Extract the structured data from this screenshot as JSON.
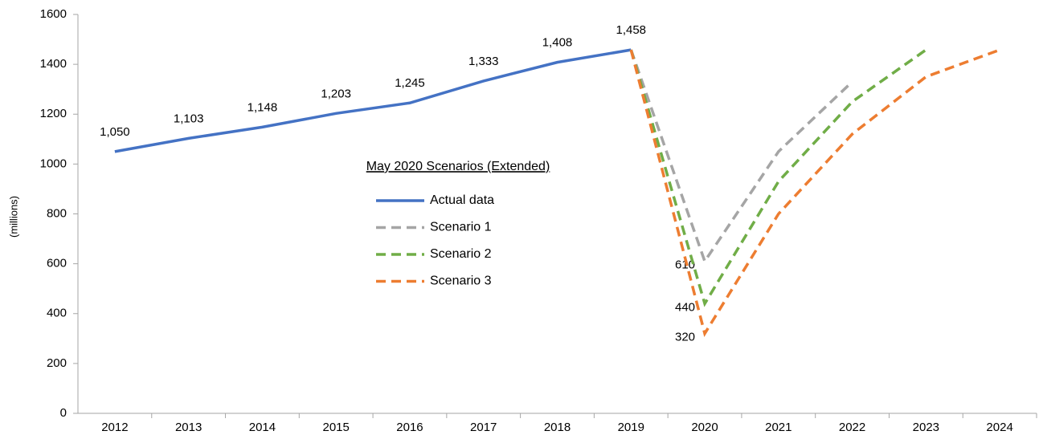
{
  "chart_data": {
    "type": "line",
    "ylabel": "(millions)",
    "legend_title": "May 2020 Scenarios (Extended)",
    "categories": [
      "2012",
      "2013",
      "2014",
      "2015",
      "2016",
      "2017",
      "2018",
      "2019",
      "2020",
      "2021",
      "2022",
      "2023",
      "2024"
    ],
    "series": [
      {
        "name": "Actual data",
        "color": "#4472c4",
        "dash": false,
        "values": [
          1050,
          1103,
          1148,
          1203,
          1245,
          1333,
          1408,
          1458,
          null,
          null,
          null,
          null,
          null
        ],
        "value_labels": [
          "1,050",
          "1,103",
          "1,148",
          "1,203",
          "1,245",
          "1,333",
          "1,408",
          "1,458",
          null,
          null,
          null,
          null,
          null
        ]
      },
      {
        "name": "Scenario 1",
        "color": "#a5a5a5",
        "dash": true,
        "values": [
          null,
          null,
          null,
          null,
          null,
          null,
          null,
          1458,
          610,
          1050,
          1330,
          null,
          null
        ],
        "value_labels": [
          null,
          null,
          null,
          null,
          null,
          null,
          null,
          null,
          "610",
          null,
          null,
          null,
          null
        ]
      },
      {
        "name": "Scenario 2",
        "color": "#70ad47",
        "dash": true,
        "values": [
          null,
          null,
          null,
          null,
          null,
          null,
          null,
          1458,
          440,
          930,
          1250,
          1458,
          null
        ],
        "value_labels": [
          null,
          null,
          null,
          null,
          null,
          null,
          null,
          null,
          "440",
          null,
          null,
          null,
          null
        ]
      },
      {
        "name": "Scenario 3",
        "color": "#ed7d31",
        "dash": true,
        "values": [
          null,
          null,
          null,
          null,
          null,
          null,
          null,
          1458,
          320,
          800,
          1120,
          1350,
          1458
        ],
        "value_labels": [
          null,
          null,
          null,
          null,
          null,
          null,
          null,
          null,
          "320",
          null,
          null,
          null,
          null
        ]
      }
    ],
    "ylim": [
      0,
      1600
    ],
    "yticks": [
      0,
      200,
      400,
      600,
      800,
      1000,
      1200,
      1400,
      1600
    ],
    "grid": false
  }
}
